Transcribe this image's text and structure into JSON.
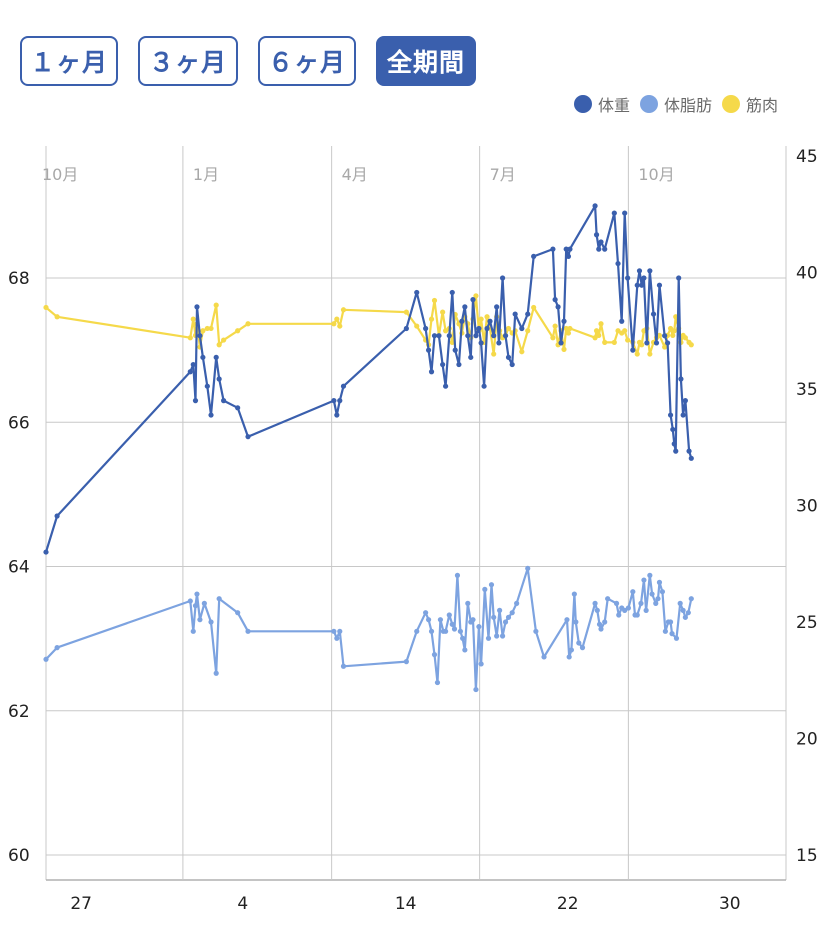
{
  "tabs": [
    {
      "label": "１ヶ月",
      "active": false
    },
    {
      "label": "３ヶ月",
      "active": false
    },
    {
      "label": "６ヶ月",
      "active": false
    },
    {
      "label": "全期間",
      "active": true
    }
  ],
  "chart_data": {
    "type": "line",
    "title": "",
    "legend_position": "top-right",
    "colors": {
      "weight": "#3a5fad",
      "body_fat": "#7da3e0",
      "muscle": "#f5d94a",
      "grid": "#c8c8c8",
      "month_label": "#a8a8a8"
    },
    "left_axis": {
      "ylim": [
        60,
        70
      ],
      "ticks": [
        60,
        62,
        64,
        66,
        68
      ]
    },
    "right_axis": {
      "ylim": [
        15,
        45
      ],
      "ticks": [
        15,
        20,
        25,
        30,
        35,
        40,
        45
      ]
    },
    "x_axis": {
      "xlim": [
        0,
        100
      ],
      "bottom_ticks": [
        {
          "x": 4.75,
          "label": "27"
        },
        {
          "x": 26.6,
          "label": "4"
        },
        {
          "x": 48.6,
          "label": "14"
        },
        {
          "x": 70.5,
          "label": "22"
        },
        {
          "x": 92.4,
          "label": "30"
        }
      ],
      "month_lines": [
        {
          "x": 18.5,
          "label": "1月"
        },
        {
          "x": 38.6,
          "label": "4月"
        },
        {
          "x": 58.6,
          "label": "7月"
        },
        {
          "x": 78.7,
          "label": "10月"
        }
      ],
      "left_month_label": "10月"
    },
    "series": [
      {
        "name": "体重",
        "axis": "left",
        "points": [
          [
            0,
            64.2
          ],
          [
            1.5,
            64.7
          ],
          [
            19.5,
            66.7
          ],
          [
            19.9,
            66.8
          ],
          [
            20.2,
            66.3
          ],
          [
            20.4,
            67.6
          ],
          [
            20.8,
            67.2
          ],
          [
            21.2,
            66.9
          ],
          [
            21.8,
            66.5
          ],
          [
            22.3,
            66.1
          ],
          [
            23.0,
            66.9
          ],
          [
            23.4,
            66.6
          ],
          [
            24.0,
            66.3
          ],
          [
            25.9,
            66.2
          ],
          [
            27.3,
            65.8
          ],
          [
            38.9,
            66.3
          ],
          [
            39.3,
            66.1
          ],
          [
            39.7,
            66.3
          ],
          [
            40.2,
            66.5
          ],
          [
            48.7,
            67.3
          ],
          [
            50.1,
            67.8
          ],
          [
            51.3,
            67.3
          ],
          [
            51.7,
            67.0
          ],
          [
            52.1,
            66.7
          ],
          [
            52.5,
            67.2
          ],
          [
            53.1,
            67.2
          ],
          [
            53.6,
            66.8
          ],
          [
            54.0,
            66.5
          ],
          [
            54.5,
            67.2
          ],
          [
            54.9,
            67.8
          ],
          [
            55.3,
            67.0
          ],
          [
            55.8,
            66.8
          ],
          [
            56.2,
            67.4
          ],
          [
            56.6,
            67.6
          ],
          [
            57.0,
            67.2
          ],
          [
            57.4,
            66.9
          ],
          [
            57.7,
            67.7
          ],
          [
            58.1,
            67.2
          ],
          [
            58.5,
            67.3
          ],
          [
            58.8,
            67.1
          ],
          [
            59.2,
            66.5
          ],
          [
            59.6,
            67.3
          ],
          [
            60.0,
            67.4
          ],
          [
            60.5,
            67.2
          ],
          [
            60.9,
            67.6
          ],
          [
            61.2,
            67.1
          ],
          [
            61.7,
            68.0
          ],
          [
            62.1,
            67.2
          ],
          [
            62.5,
            66.9
          ],
          [
            63.0,
            66.8
          ],
          [
            63.4,
            67.5
          ],
          [
            64.3,
            67.3
          ],
          [
            65.1,
            67.5
          ],
          [
            65.9,
            68.3
          ],
          [
            68.5,
            68.4
          ],
          [
            68.8,
            67.7
          ],
          [
            69.2,
            67.6
          ],
          [
            69.6,
            67.1
          ],
          [
            70.0,
            67.4
          ],
          [
            70.3,
            68.4
          ],
          [
            70.6,
            68.3
          ],
          [
            70.8,
            68.4
          ],
          [
            74.2,
            69.0
          ],
          [
            74.4,
            68.6
          ],
          [
            74.7,
            68.4
          ],
          [
            75.0,
            68.5
          ],
          [
            75.5,
            68.4
          ],
          [
            76.8,
            68.9
          ],
          [
            77.3,
            68.2
          ],
          [
            77.8,
            67.4
          ],
          [
            78.2,
            68.9
          ],
          [
            78.6,
            68.0
          ],
          [
            79.3,
            67.0
          ],
          [
            79.9,
            67.9
          ],
          [
            80.2,
            68.1
          ],
          [
            80.5,
            67.9
          ],
          [
            80.8,
            68.0
          ],
          [
            81.2,
            67.1
          ],
          [
            81.6,
            68.1
          ],
          [
            82.1,
            67.5
          ],
          [
            82.5,
            67.1
          ],
          [
            82.9,
            67.9
          ],
          [
            83.6,
            67.2
          ],
          [
            84.0,
            67.1
          ],
          [
            84.4,
            66.1
          ],
          [
            84.7,
            65.9
          ],
          [
            84.9,
            65.7
          ],
          [
            85.1,
            65.6
          ],
          [
            85.5,
            68.0
          ],
          [
            85.8,
            66.6
          ],
          [
            86.1,
            66.1
          ],
          [
            86.4,
            66.3
          ],
          [
            86.9,
            65.6
          ],
          [
            87.2,
            65.5
          ]
        ]
      },
      {
        "name": "体脂肪",
        "axis": "right",
        "points": [
          [
            0,
            23.4
          ],
          [
            1.5,
            23.9
          ],
          [
            19.5,
            25.9
          ],
          [
            19.9,
            24.6
          ],
          [
            20.2,
            25.7
          ],
          [
            20.4,
            26.2
          ],
          [
            20.8,
            25.1
          ],
          [
            21.4,
            25.8
          ],
          [
            22.3,
            25.0
          ],
          [
            23.0,
            22.8
          ],
          [
            23.4,
            26.0
          ],
          [
            25.9,
            25.4
          ],
          [
            27.3,
            24.6
          ],
          [
            38.9,
            24.6
          ],
          [
            39.3,
            24.3
          ],
          [
            39.7,
            24.6
          ],
          [
            40.2,
            23.1
          ],
          [
            48.7,
            23.3
          ],
          [
            50.1,
            24.6
          ],
          [
            51.3,
            25.4
          ],
          [
            51.7,
            25.1
          ],
          [
            52.1,
            24.6
          ],
          [
            52.5,
            23.6
          ],
          [
            52.9,
            22.4
          ],
          [
            53.3,
            25.1
          ],
          [
            53.7,
            24.6
          ],
          [
            54.0,
            24.6
          ],
          [
            54.5,
            25.3
          ],
          [
            54.9,
            24.9
          ],
          [
            55.2,
            24.7
          ],
          [
            55.6,
            27.0
          ],
          [
            56.0,
            24.6
          ],
          [
            56.3,
            24.3
          ],
          [
            56.6,
            23.8
          ],
          [
            57.0,
            25.8
          ],
          [
            57.4,
            25.0
          ],
          [
            57.7,
            25.1
          ],
          [
            58.1,
            22.1
          ],
          [
            58.5,
            24.8
          ],
          [
            58.8,
            23.2
          ],
          [
            59.3,
            26.4
          ],
          [
            59.8,
            24.3
          ],
          [
            60.2,
            26.6
          ],
          [
            60.5,
            25.2
          ],
          [
            60.9,
            24.4
          ],
          [
            61.3,
            25.5
          ],
          [
            61.7,
            24.4
          ],
          [
            62.1,
            25.0
          ],
          [
            62.5,
            25.2
          ],
          [
            63.0,
            25.4
          ],
          [
            63.6,
            25.8
          ],
          [
            65.1,
            27.3
          ],
          [
            66.2,
            24.6
          ],
          [
            67.3,
            23.5
          ],
          [
            70.4,
            25.1
          ],
          [
            70.7,
            23.5
          ],
          [
            71.0,
            23.8
          ],
          [
            71.4,
            26.2
          ],
          [
            71.6,
            25.0
          ],
          [
            72.0,
            24.1
          ],
          [
            72.5,
            23.9
          ],
          [
            74.2,
            25.8
          ],
          [
            74.5,
            25.5
          ],
          [
            74.8,
            24.9
          ],
          [
            75.0,
            24.7
          ],
          [
            75.5,
            25.0
          ],
          [
            75.9,
            26.0
          ],
          [
            77.1,
            25.8
          ],
          [
            77.4,
            25.3
          ],
          [
            77.8,
            25.6
          ],
          [
            78.2,
            25.5
          ],
          [
            78.7,
            25.6
          ],
          [
            79.3,
            26.3
          ],
          [
            79.6,
            25.3
          ],
          [
            79.9,
            25.3
          ],
          [
            80.4,
            25.8
          ],
          [
            80.8,
            26.8
          ],
          [
            81.1,
            25.5
          ],
          [
            81.6,
            27.0
          ],
          [
            81.9,
            26.2
          ],
          [
            82.4,
            25.8
          ],
          [
            82.7,
            26.0
          ],
          [
            82.9,
            26.7
          ],
          [
            83.3,
            26.3
          ],
          [
            83.7,
            24.6
          ],
          [
            84.1,
            25.0
          ],
          [
            84.4,
            25.0
          ],
          [
            84.6,
            24.5
          ],
          [
            85.2,
            24.3
          ],
          [
            85.7,
            25.8
          ],
          [
            86.1,
            25.5
          ],
          [
            86.4,
            25.2
          ],
          [
            86.8,
            25.4
          ],
          [
            87.2,
            26.0
          ]
        ]
      },
      {
        "name": "筋肉",
        "axis": "right",
        "points": [
          [
            0,
            38.5
          ],
          [
            1.5,
            38.1
          ],
          [
            19.5,
            37.2
          ],
          [
            19.9,
            38.0
          ],
          [
            20.2,
            37.3
          ],
          [
            20.4,
            37.8
          ],
          [
            20.8,
            36.8
          ],
          [
            21.2,
            37.5
          ],
          [
            21.8,
            37.6
          ],
          [
            22.3,
            37.6
          ],
          [
            23.0,
            38.6
          ],
          [
            23.4,
            36.9
          ],
          [
            24.0,
            37.1
          ],
          [
            25.9,
            37.5
          ],
          [
            27.3,
            37.8
          ],
          [
            38.9,
            37.8
          ],
          [
            39.3,
            38.0
          ],
          [
            39.7,
            37.7
          ],
          [
            40.2,
            38.4
          ],
          [
            48.7,
            38.3
          ],
          [
            50.1,
            37.7
          ],
          [
            51.3,
            37.1
          ],
          [
            51.7,
            36.9
          ],
          [
            52.1,
            38.0
          ],
          [
            52.5,
            38.8
          ],
          [
            53.1,
            37.3
          ],
          [
            53.6,
            38.3
          ],
          [
            54.0,
            37.5
          ],
          [
            54.5,
            37.6
          ],
          [
            54.9,
            37.0
          ],
          [
            55.3,
            38.2
          ],
          [
            55.8,
            37.8
          ],
          [
            56.2,
            37.4
          ],
          [
            56.6,
            38.1
          ],
          [
            57.0,
            37.8
          ],
          [
            57.4,
            37.2
          ],
          [
            57.7,
            38.0
          ],
          [
            58.1,
            39.0
          ],
          [
            58.5,
            37.5
          ],
          [
            58.8,
            38.0
          ],
          [
            59.2,
            37.0
          ],
          [
            59.6,
            38.1
          ],
          [
            60.0,
            37.6
          ],
          [
            60.5,
            36.5
          ],
          [
            60.9,
            38.1
          ],
          [
            61.3,
            37.5
          ],
          [
            61.7,
            37.2
          ],
          [
            62.1,
            37.3
          ],
          [
            62.5,
            37.6
          ],
          [
            63.0,
            37.4
          ],
          [
            63.4,
            37.5
          ],
          [
            64.3,
            36.6
          ],
          [
            65.1,
            37.5
          ],
          [
            65.9,
            38.5
          ],
          [
            68.5,
            37.2
          ],
          [
            68.8,
            37.7
          ],
          [
            69.2,
            36.9
          ],
          [
            69.6,
            37.5
          ],
          [
            70.0,
            36.7
          ],
          [
            70.3,
            37.6
          ],
          [
            70.6,
            37.4
          ],
          [
            70.8,
            37.6
          ],
          [
            74.2,
            37.2
          ],
          [
            74.4,
            37.5
          ],
          [
            74.7,
            37.3
          ],
          [
            75.0,
            37.8
          ],
          [
            75.5,
            37.0
          ],
          [
            76.8,
            37.0
          ],
          [
            77.3,
            37.5
          ],
          [
            77.8,
            37.4
          ],
          [
            78.2,
            37.5
          ],
          [
            78.6,
            37.1
          ],
          [
            79.3,
            37.0
          ],
          [
            79.9,
            36.5
          ],
          [
            80.2,
            37.0
          ],
          [
            80.5,
            36.9
          ],
          [
            80.8,
            37.5
          ],
          [
            81.2,
            37.6
          ],
          [
            81.6,
            36.5
          ],
          [
            82.1,
            37.0
          ],
          [
            82.5,
            37.2
          ],
          [
            82.9,
            37.3
          ],
          [
            83.6,
            36.8
          ],
          [
            84.0,
            37.3
          ],
          [
            84.4,
            37.6
          ],
          [
            84.7,
            37.3
          ],
          [
            84.9,
            37.5
          ],
          [
            85.1,
            38.1
          ],
          [
            85.5,
            37.6
          ],
          [
            85.8,
            37.0
          ],
          [
            86.1,
            37.3
          ],
          [
            86.4,
            37.2
          ],
          [
            86.9,
            37.0
          ],
          [
            87.2,
            36.9
          ]
        ]
      }
    ]
  }
}
